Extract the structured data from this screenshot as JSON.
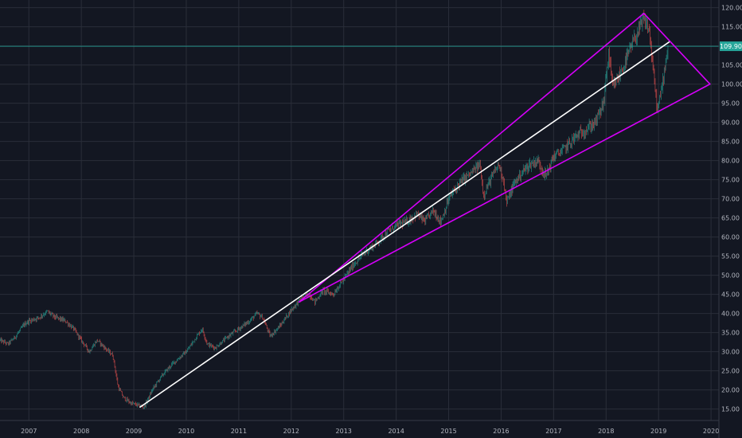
{
  "chart_data": {
    "type": "candlestick",
    "title": "",
    "xlabel": "",
    "ylabel": "",
    "x_range": [
      2006.45,
      2020.15
    ],
    "y_range": [
      12.0,
      122.0
    ],
    "x_ticks": [
      "2007",
      "2008",
      "2009",
      "2010",
      "2011",
      "2012",
      "2013",
      "2014",
      "2015",
      "2016",
      "2017",
      "2018",
      "2019",
      "2020"
    ],
    "y_ticks": [
      "15.00",
      "20.00",
      "25.00",
      "30.00",
      "35.00",
      "40.00",
      "45.00",
      "50.00",
      "55.00",
      "60.00",
      "65.00",
      "70.00",
      "75.00",
      "80.00",
      "85.00",
      "90.00",
      "95.00",
      "100.00",
      "105.00",
      "110.00",
      "115.00",
      "120.00"
    ],
    "grid": true,
    "last_price": {
      "value": 109.9,
      "label": "109.90",
      "color": "#26a69a"
    },
    "price_path": [
      [
        2006.45,
        33
      ],
      [
        2006.6,
        32
      ],
      [
        2006.75,
        34
      ],
      [
        2006.9,
        37
      ],
      [
        2007.0,
        38
      ],
      [
        2007.2,
        39
      ],
      [
        2007.35,
        40.5
      ],
      [
        2007.5,
        39
      ],
      [
        2007.7,
        38
      ],
      [
        2007.85,
        36
      ],
      [
        2008.0,
        33
      ],
      [
        2008.15,
        30
      ],
      [
        2008.3,
        33
      ],
      [
        2008.45,
        31
      ],
      [
        2008.6,
        29
      ],
      [
        2008.7,
        21
      ],
      [
        2008.8,
        18
      ],
      [
        2008.95,
        16.5
      ],
      [
        2009.2,
        15.5
      ],
      [
        2009.35,
        20
      ],
      [
        2009.55,
        24
      ],
      [
        2009.75,
        27
      ],
      [
        2010.0,
        30
      ],
      [
        2010.15,
        33
      ],
      [
        2010.3,
        36
      ],
      [
        2010.4,
        32
      ],
      [
        2010.55,
        31
      ],
      [
        2010.8,
        34
      ],
      [
        2011.0,
        36
      ],
      [
        2011.2,
        38
      ],
      [
        2011.35,
        40
      ],
      [
        2011.45,
        39
      ],
      [
        2011.6,
        34
      ],
      [
        2011.8,
        37
      ],
      [
        2012.0,
        41
      ],
      [
        2012.2,
        44
      ],
      [
        2012.35,
        45
      ],
      [
        2012.45,
        43
      ],
      [
        2012.6,
        46
      ],
      [
        2012.8,
        45
      ],
      [
        2013.0,
        49
      ],
      [
        2013.2,
        53
      ],
      [
        2013.4,
        56
      ],
      [
        2013.6,
        58
      ],
      [
        2013.8,
        61
      ],
      [
        2014.0,
        63
      ],
      [
        2014.2,
        64
      ],
      [
        2014.4,
        66
      ],
      [
        2014.55,
        64
      ],
      [
        2014.7,
        67
      ],
      [
        2014.85,
        64
      ],
      [
        2015.0,
        70
      ],
      [
        2015.2,
        74
      ],
      [
        2015.45,
        77
      ],
      [
        2015.6,
        79
      ],
      [
        2015.66,
        71
      ],
      [
        2015.8,
        75
      ],
      [
        2015.95,
        79
      ],
      [
        2016.05,
        75
      ],
      [
        2016.1,
        69
      ],
      [
        2016.25,
        74
      ],
      [
        2016.4,
        77
      ],
      [
        2016.55,
        79
      ],
      [
        2016.7,
        80
      ],
      [
        2016.85,
        76
      ],
      [
        2017.0,
        81
      ],
      [
        2017.2,
        83
      ],
      [
        2017.4,
        86
      ],
      [
        2017.6,
        88
      ],
      [
        2017.8,
        90
      ],
      [
        2017.95,
        95
      ],
      [
        2018.05,
        108
      ],
      [
        2018.12,
        99
      ],
      [
        2018.25,
        102
      ],
      [
        2018.4,
        107
      ],
      [
        2018.55,
        112
      ],
      [
        2018.72,
        117
      ],
      [
        2018.82,
        114
      ],
      [
        2018.9,
        103
      ],
      [
        2018.98,
        93
      ],
      [
        2019.05,
        98
      ],
      [
        2019.12,
        105
      ],
      [
        2019.18,
        109.9
      ]
    ],
    "annotations": {
      "trend_line": {
        "color": "#ffffff",
        "from": [
          2009.12,
          15.5
        ],
        "to": [
          2019.2,
          111
        ]
      },
      "upper_line": {
        "color": "#d500f9",
        "from": [
          2012.15,
          43
        ],
        "to": [
          2018.72,
          118.5
        ]
      },
      "lower_line": {
        "color": "#d500f9",
        "from": [
          2012.15,
          43
        ],
        "to": [
          2019.98,
          100
        ]
      },
      "right_line": {
        "color": "#d500f9",
        "from": [
          2018.72,
          118.5
        ],
        "to": [
          2019.98,
          100
        ]
      }
    }
  }
}
